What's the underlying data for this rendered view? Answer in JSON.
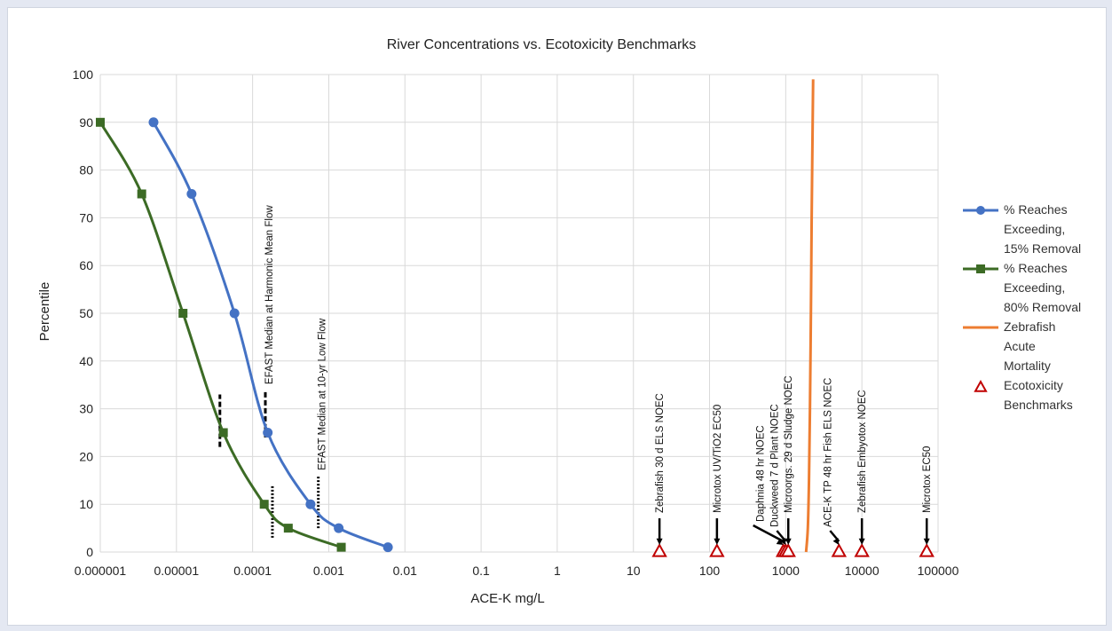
{
  "chart_data": {
    "type": "line",
    "title": "River Concentrations vs. Ecotoxicity Benchmarks",
    "xlabel": "ACE-K mg/L",
    "ylabel": "Percentile",
    "xscale": "log",
    "xlim": [
      1e-06,
      100000
    ],
    "ylim": [
      0,
      100
    ],
    "x_ticks": [
      "0.000001",
      "0.00001",
      "0.0001",
      "0.001",
      "0.01",
      "0.1",
      "1",
      "10",
      "100",
      "1000",
      "10000",
      "100000"
    ],
    "y_ticks": [
      "0",
      "10",
      "20",
      "30",
      "40",
      "50",
      "60",
      "70",
      "80",
      "90",
      "100"
    ],
    "grid": true,
    "legend_position": "right",
    "series": [
      {
        "name": "% Reaches Exceeding, 15% Removal",
        "legend_lines": [
          "% Reaches",
          "Exceeding,",
          "15% Removal"
        ],
        "color": "#4472c4",
        "marker": "circle",
        "points": [
          [
            5e-06,
            90
          ],
          [
            1.58e-05,
            75
          ],
          [
            5.78e-05,
            50
          ],
          [
            0.000158,
            25
          ],
          [
            0.000576,
            10
          ],
          [
            0.00135,
            5
          ],
          [
            0.00598,
            1
          ]
        ]
      },
      {
        "name": "% Reaches Exceeding, 80% Removal",
        "legend_lines": [
          "% Reaches",
          "Exceeding,",
          "80% Removal"
        ],
        "color": "#3c6b25",
        "marker": "square",
        "points": [
          [
            1e-06,
            90
          ],
          [
            3.5e-06,
            75
          ],
          [
            1.22e-05,
            50
          ],
          [
            4.13e-05,
            25
          ],
          [
            0.000142,
            10
          ],
          [
            0.000294,
            5
          ],
          [
            0.00146,
            1
          ]
        ]
      },
      {
        "name": "Zebrafish Acute Mortality",
        "legend_lines": [
          "Zebrafish",
          "Acute",
          "Mortality"
        ],
        "color": "#ed7d31",
        "marker": "none",
        "points": [
          [
            1850,
            0
          ],
          [
            1950,
            5
          ],
          [
            2020,
            15
          ],
          [
            2080,
            30
          ],
          [
            2140,
            50
          ],
          [
            2190,
            70
          ],
          [
            2240,
            85
          ],
          [
            2290,
            99
          ]
        ]
      },
      {
        "name": "Ecotoxicity Benchmarks",
        "legend_lines": [
          "Ecotoxicity",
          "Benchmarks"
        ],
        "color": "#c00000",
        "marker": "triangle",
        "points": [
          [
            22,
            0
          ],
          [
            125,
            0
          ],
          [
            930,
            0
          ],
          [
            1000,
            0
          ],
          [
            1080,
            0
          ],
          [
            5000,
            0
          ],
          [
            10000,
            0
          ],
          [
            71000,
            0
          ]
        ]
      }
    ],
    "benchmark_labels": [
      {
        "text": "Zebrafish  30 d ELS NOEC",
        "x": 22,
        "arrow": "down"
      },
      {
        "text": "Microtox UV/TiO2 EC50",
        "x": 125,
        "arrow": "down"
      },
      {
        "text": "Daphnia 48 hr NOEC",
        "x": 930,
        "arrow": "diagonal-long"
      },
      {
        "text": "Duckweed  7 d Plant NOEC",
        "x": 1000,
        "arrow": "diagonal-short"
      },
      {
        "text": "Microorgs. 29 d Sludge NOEC",
        "x": 1080,
        "arrow": "down"
      },
      {
        "text": "ACE-K TP 48 hr Fish ELS NOEC",
        "x": 5000,
        "arrow": "diagonal-short"
      },
      {
        "text": "Zebrafish  Embyotox  NOEC",
        "x": 10000,
        "arrow": "down"
      },
      {
        "text": "Microtox EC50",
        "x": 71000,
        "arrow": "down"
      }
    ],
    "reference_lines": [
      {
        "text": "EFAST  Median  at Harmonic Mean  Flow",
        "style": "dashed",
        "segments": [
          {
            "x": 3.72e-05,
            "y0": 22,
            "y1": 33
          },
          {
            "x": 0.000147,
            "y0": 24,
            "y1": 34
          }
        ]
      },
      {
        "text": "EFAST Median  at 10-yr Low Flow",
        "style": "dotted",
        "segments": [
          {
            "x": 0.000182,
            "y0": 3,
            "y1": 14
          },
          {
            "x": 0.000729,
            "y0": 5,
            "y1": 16
          }
        ]
      }
    ]
  }
}
